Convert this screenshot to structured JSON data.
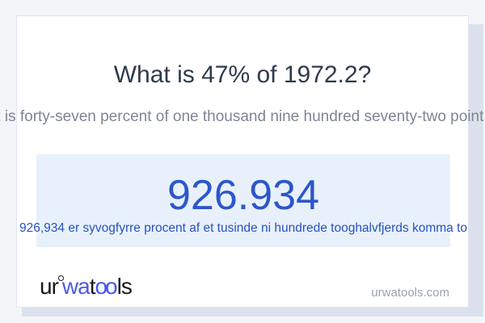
{
  "title": "What is 47% of 1972.2?",
  "subtitle": "What is forty-seven percent of one thousand nine hundred seventy-two point two?",
  "result": {
    "value": "926.934",
    "sentence": "926,934 er syvogfyrre procent af et tusinde ni hundrede tooghalvfjerds komma to"
  },
  "logo": {
    "seg1": "ur",
    "seg2": "wa",
    "seg3": "t",
    "seg4": "oo",
    "seg5": "ls"
  },
  "site_link": "urwatools.com",
  "colors": {
    "page_bg": "#f4f5f9",
    "card_bg": "#ffffff",
    "card_border": "#e2e4f1",
    "card_shadow": "#dbe2ee",
    "title_text": "#2e3b4c",
    "subtitle_text": "#7d8694",
    "result_box_bg": "#e8f1fb",
    "result_value_text": "#2d56cc",
    "result_sentence_text": "#2a51c0",
    "logo_dark": "#17181a",
    "logo_blue": "#4a5af0",
    "site_link_text": "#9aa3b0"
  }
}
